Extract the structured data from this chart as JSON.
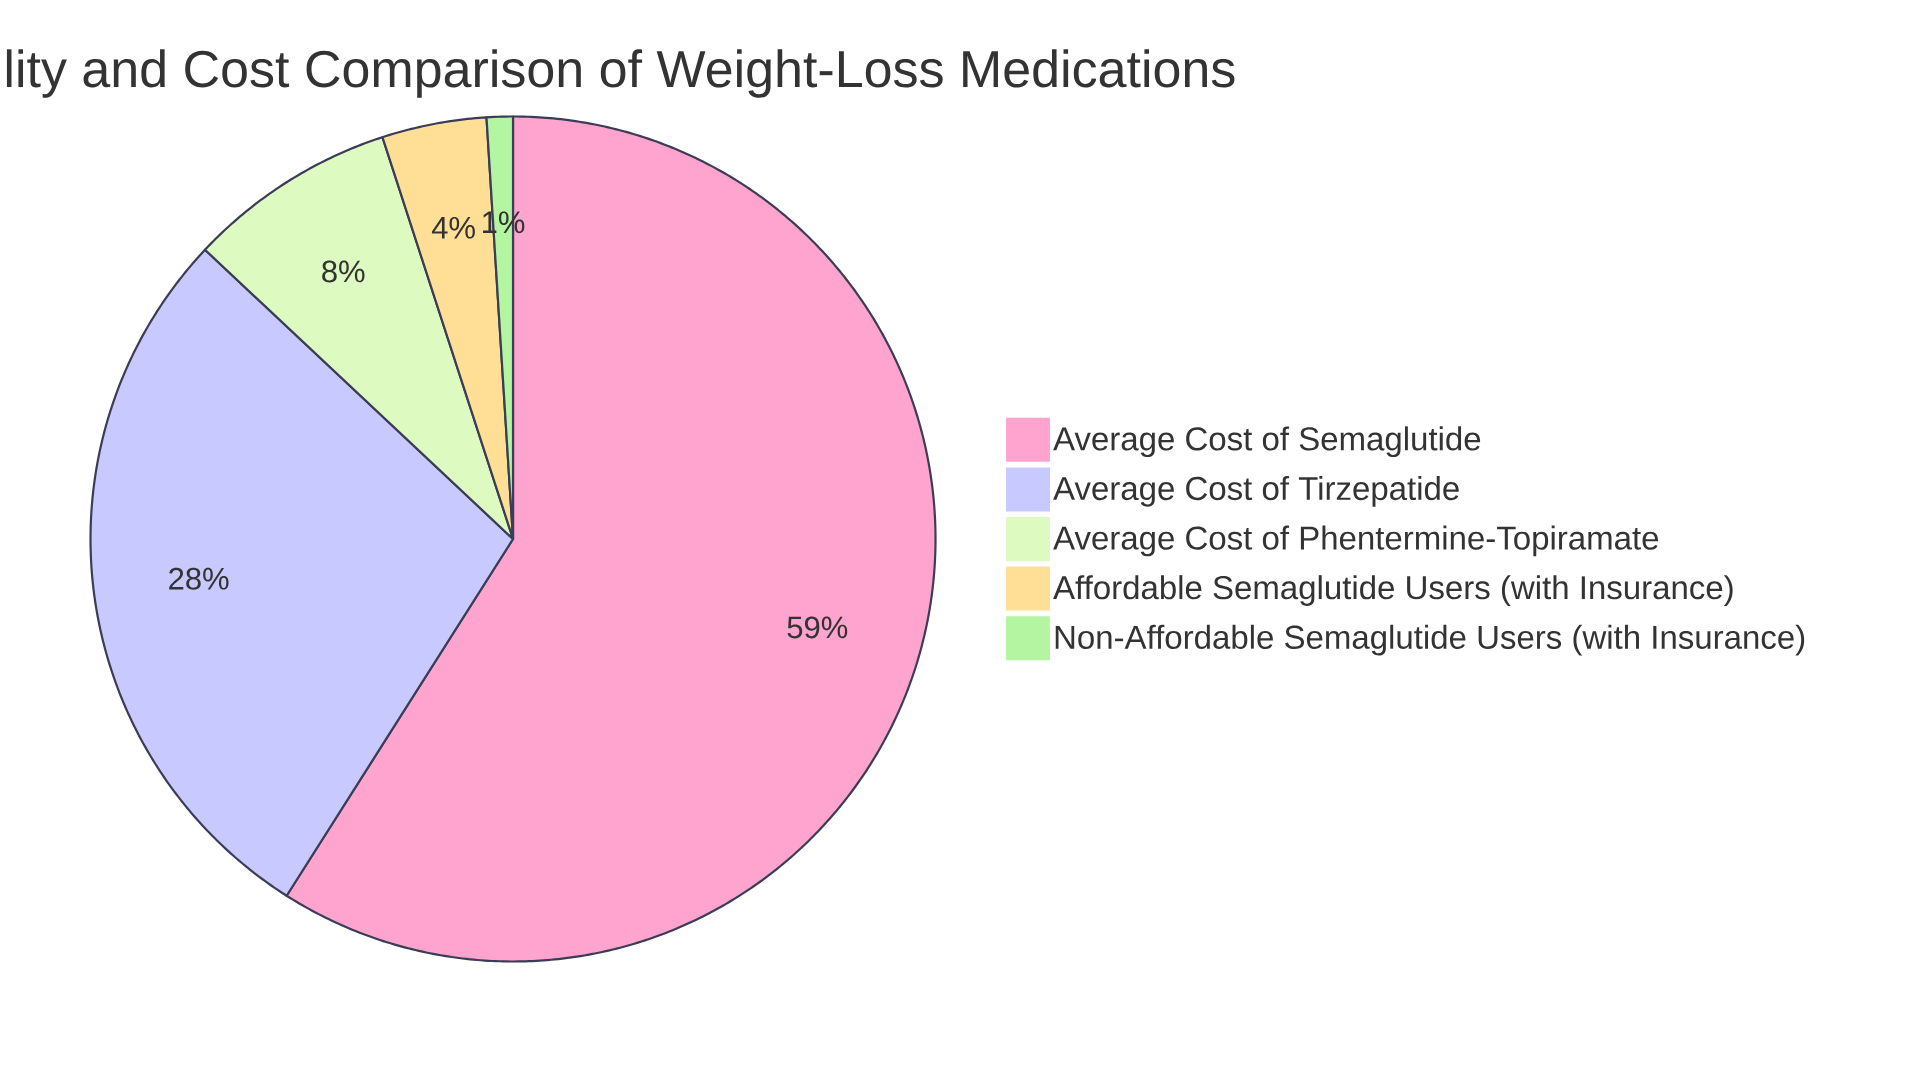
{
  "chart_data": {
    "type": "pie",
    "title": "lity and Cost Comparison of Weight-Loss Medications",
    "categories": [
      "Average Cost of Semaglutide",
      "Average Cost of Tirzepatide",
      "Average Cost of Phentermine-Topiramate",
      "Affordable Semaglutide Users (with Insurance)",
      "Non-Affordable Semaglutide Users (with Insurance)"
    ],
    "values": [
      59,
      28,
      8,
      4,
      1
    ],
    "colors": [
      "#ffa3cf",
      "#c8caff",
      "#ddfac0",
      "#ffdf95",
      "#b3f5a0"
    ],
    "value_labels": [
      "59%",
      "28%",
      "8%",
      "4%",
      "1%"
    ],
    "legend": "right"
  }
}
